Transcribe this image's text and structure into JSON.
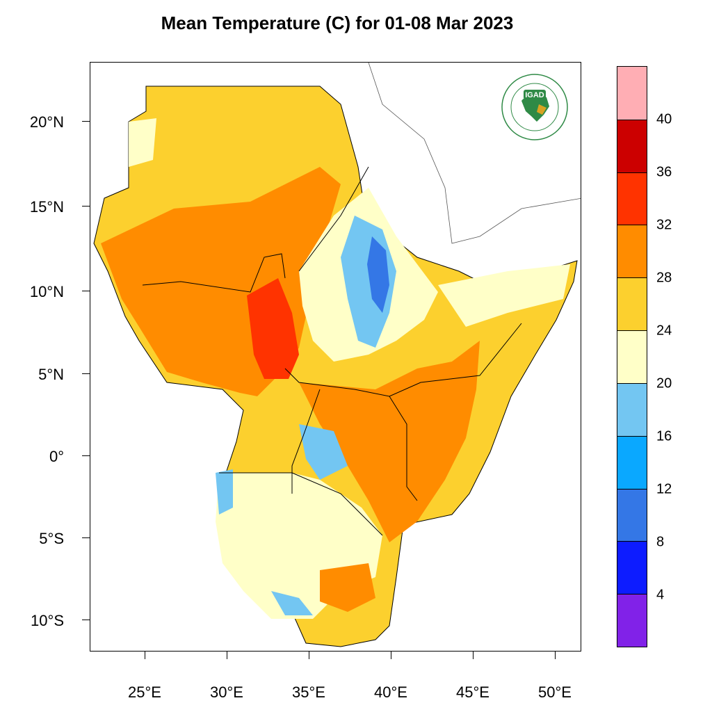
{
  "title": "Mean Temperature (C) for 01-08 Mar 2023",
  "lat_labels": [
    "20°N",
    "15°N",
    "10°N",
    "5°N",
    "0°",
    "5°S",
    "10°S"
  ],
  "lon_labels": [
    "25°E",
    "30°E",
    "35°E",
    "40°E",
    "45°E",
    "50°E"
  ],
  "colorbar": {
    "labels": [
      "40",
      "36",
      "32",
      "28",
      "24",
      "20",
      "16",
      "12",
      "8",
      "4"
    ],
    "colors": [
      "#ffaeb4",
      "#cc0000",
      "#ff3300",
      "#ff8c00",
      "#fcd02e",
      "#ffffc8",
      "#73c6f2",
      "#0aa8ff",
      "#3477e6",
      "#0d1cff",
      "#8122e8"
    ]
  },
  "logo": {
    "text": "IGAD",
    "ring_text": "INTERGOVERNMENTAL AUTHORITY ON DEVELOPMENT"
  }
}
